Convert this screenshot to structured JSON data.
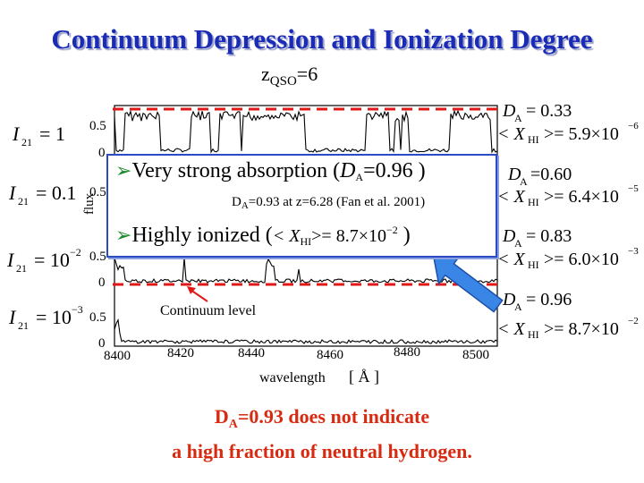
{
  "slide": {
    "title": "Continuum Depression and Ionization Degree",
    "zqso_z": "z",
    "zqso_sub": "QSO",
    "zqso_val": "=6"
  },
  "plot": {
    "ylabel": "flux",
    "xlabel": "wavelength",
    "xunit": "[ Å ]",
    "ticks_x": [
      "8400",
      "8420",
      "8440",
      "8460",
      "8480",
      "8500"
    ],
    "panels": [
      {
        "I_label": "I",
        "I_sub": "21",
        "I_val": "= 1",
        "y_tick": "0.5",
        "y0": "0",
        "DA": "D",
        "DA_sub": "A",
        "DA_val": "= 0.33",
        "XHI": "< X",
        "XHI_sub": "HI",
        "XHI_val": ">= 5.9×10",
        "XHI_exp": "−6"
      },
      {
        "I_label": "I",
        "I_sub": "21",
        "I_val": "= 0.1",
        "y_tick": "0.5",
        "y0": "0",
        "DA": "D",
        "DA_sub": "A",
        "DA_val": "=0.60",
        "XHI": "< X",
        "XHI_sub": "HI",
        "XHI_val": ">= 6.4×10",
        "XHI_exp": "−5"
      },
      {
        "I_label": "I",
        "I_sub": "21",
        "I_val": "= 10",
        "I_exp": "−2",
        "y_tick": "0.5",
        "y0": "0",
        "DA": "D",
        "DA_sub": "A",
        "DA_val": "= 0.83",
        "XHI": "< X",
        "XHI_sub": "HI",
        "XHI_val": ">= 6.0×10",
        "XHI_exp": "−3"
      },
      {
        "I_label": "I",
        "I_sub": "21",
        "I_val": "= 10",
        "I_exp": "−3",
        "y_tick": "0.5",
        "y0": "0",
        "DA": "D",
        "DA_sub": "A",
        "DA_val": "= 0.96",
        "XHI": "< X",
        "XHI_sub": "HI",
        "XHI_val": ">= 8.7×10",
        "XHI_exp": "−2"
      }
    ],
    "continuum_label": "Continuum level",
    "colors": {
      "dashed": "#e01818",
      "arrow": "#3a86e6",
      "arrow_stroke": "#1e4fa8",
      "popup_border": "#2b4bc4"
    }
  },
  "popup": {
    "line1_text": "Very strong absorption (",
    "line1_sym": "D",
    "line1_sub": "A",
    "line1_val": "=0.96 )",
    "note_d": "D",
    "note_sub": "A",
    "note_rest": "=0.93 at z=6.28 (Fan et al. 2001)",
    "line2_text": "Highly ionized (",
    "line2_sym": "< X",
    "line2_sub": "HI",
    "line2_val": ">= 8.7×10",
    "line2_exp": "−2",
    "line2_end": " )"
  },
  "bottom": {
    "line1_d": "D",
    "line1_sub": "A",
    "line1_rest": "=0.93 does not indicate",
    "line2": "a high fraction of neutral hydrogen."
  }
}
